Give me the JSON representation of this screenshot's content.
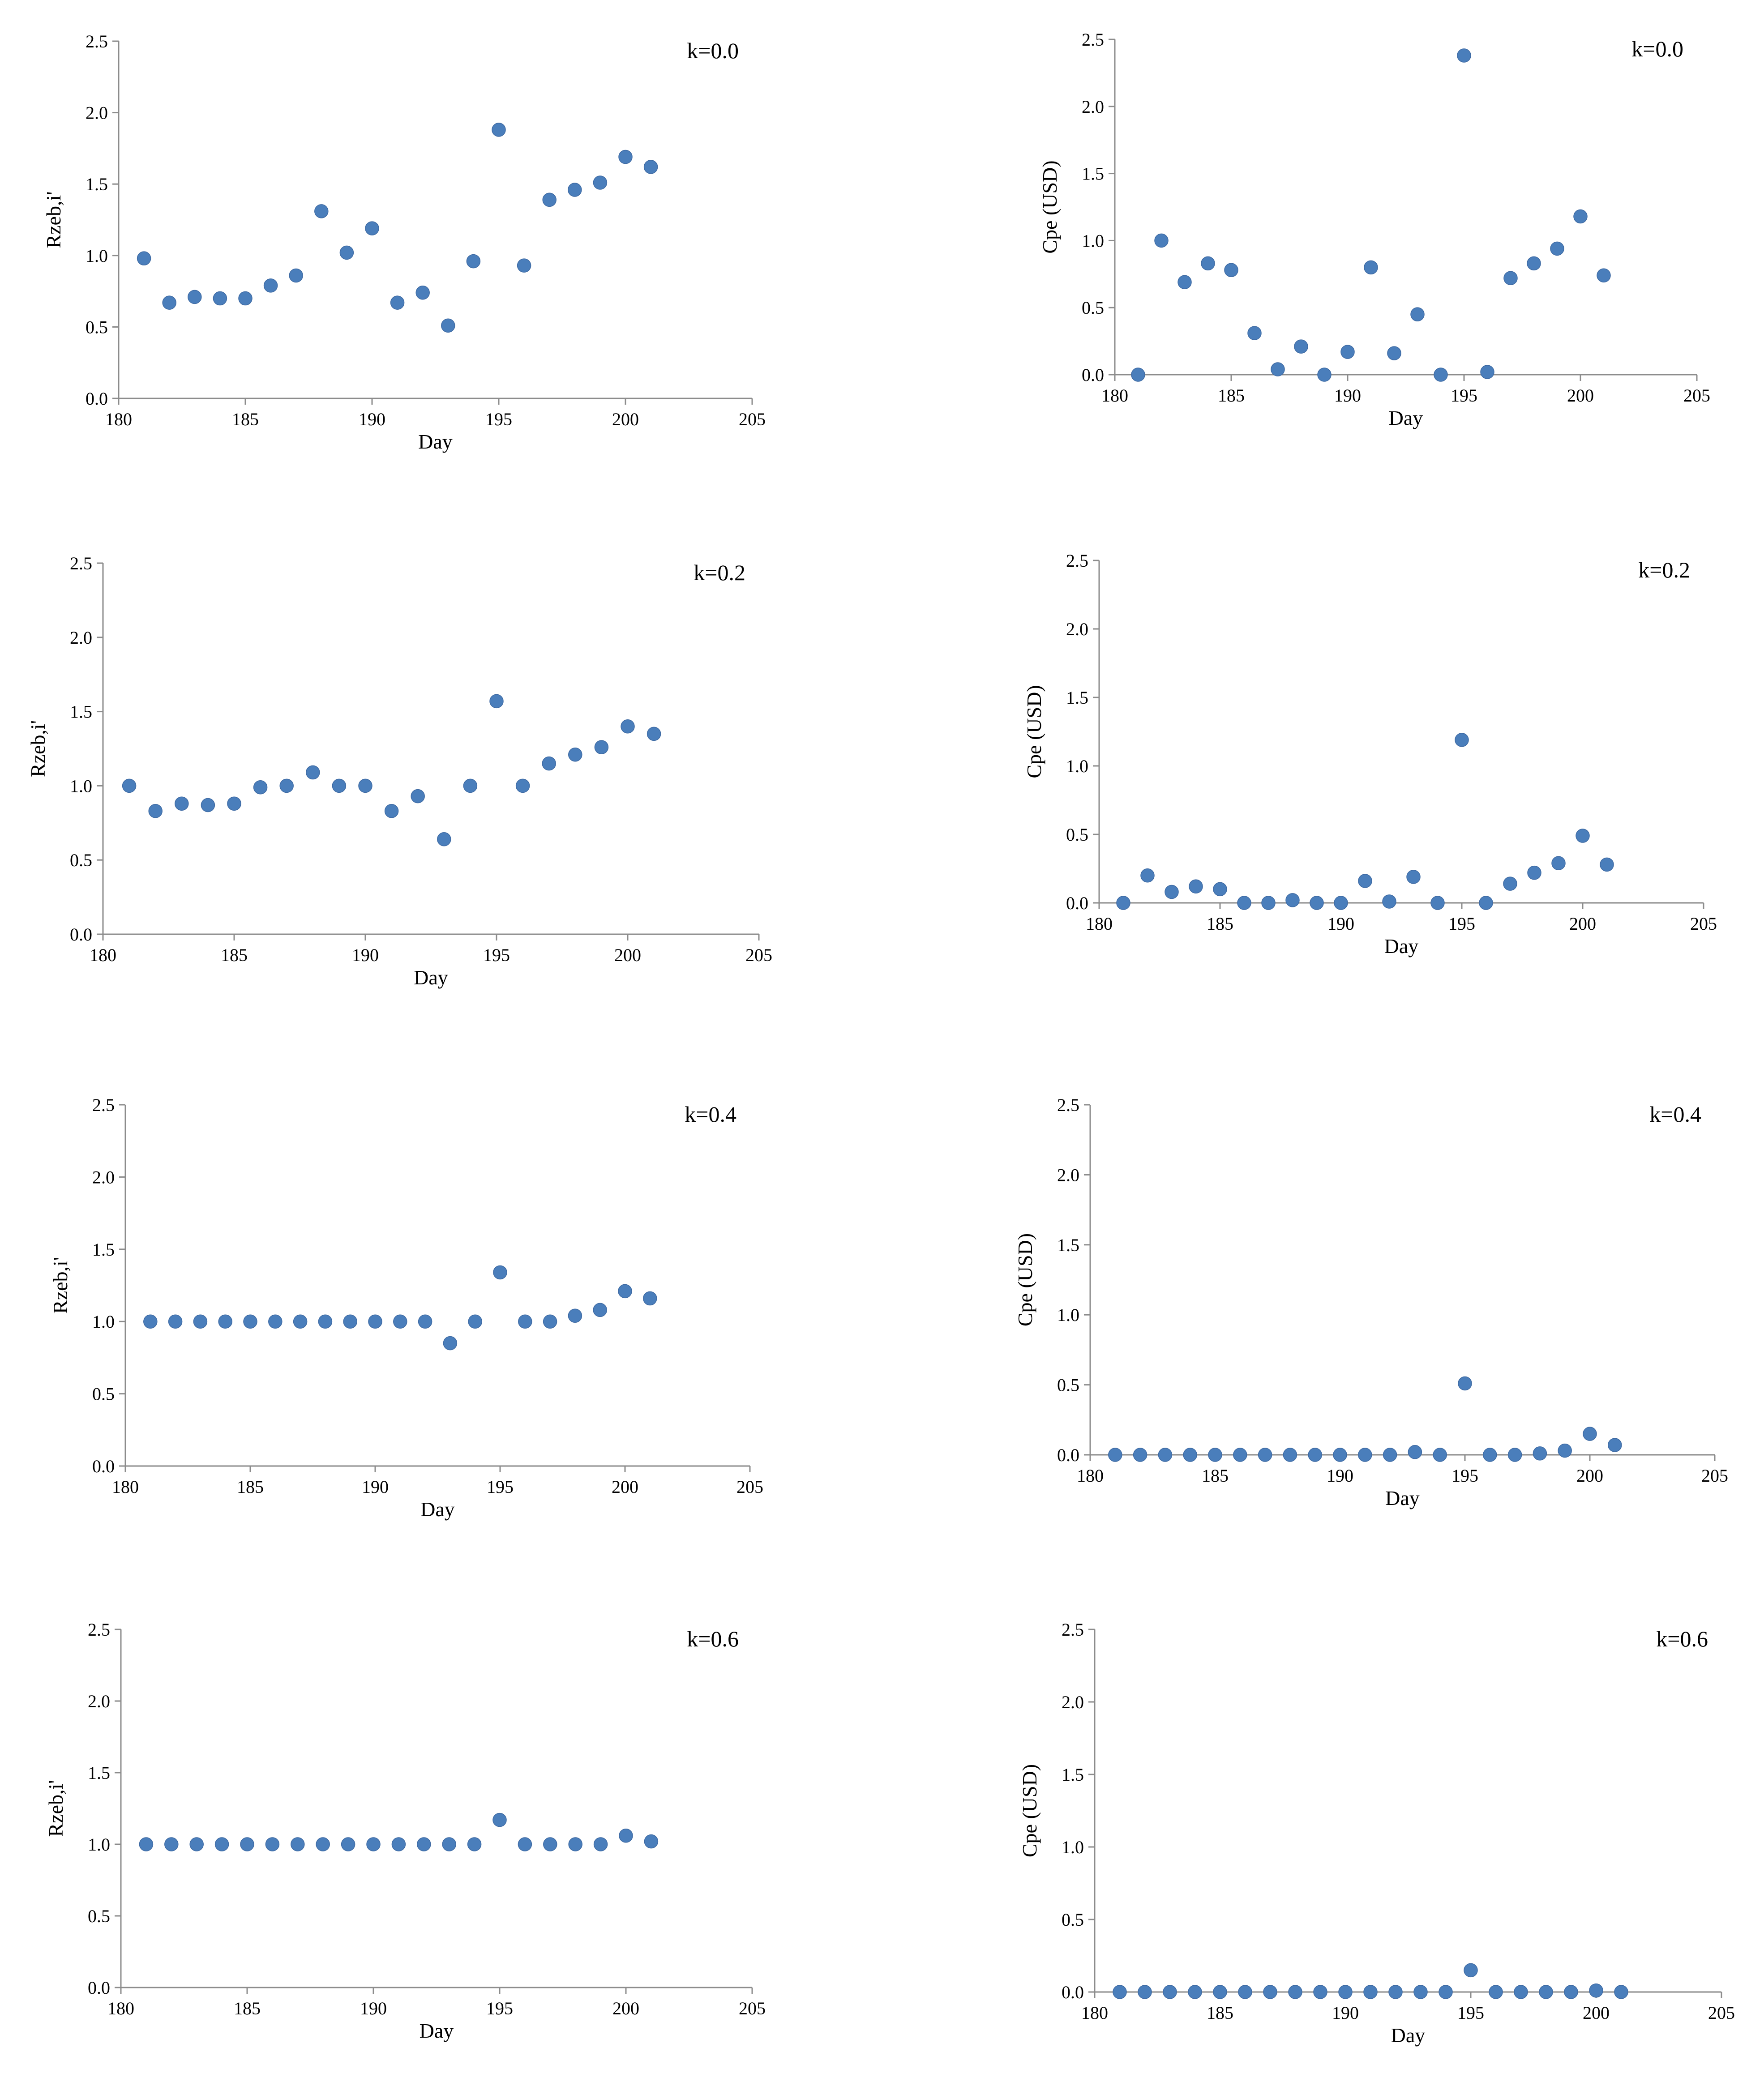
{
  "chart_data": [
    {
      "type": "scatter",
      "title": "k=0.0",
      "xlabel": "Day",
      "ylabel": "Rzeb,i'",
      "xlim": [
        180,
        205
      ],
      "ylim": [
        0.0,
        2.5
      ],
      "xticks": [
        "180",
        "185",
        "190",
        "195",
        "200",
        "205"
      ],
      "yticks": [
        "0.0",
        "0.5",
        "1.0",
        "1.5",
        "2.0",
        "2.5"
      ],
      "grid": false,
      "marker_color": "#4a7ebb",
      "x": [
        181,
        182,
        183,
        184,
        185,
        186,
        187,
        188,
        189,
        190,
        191,
        192,
        193,
        194,
        195,
        196,
        197,
        198,
        199,
        200,
        201
      ],
      "y": [
        0.98,
        0.67,
        0.71,
        0.7,
        0.7,
        0.79,
        0.86,
        1.31,
        1.02,
        1.19,
        0.67,
        0.74,
        0.51,
        0.96,
        1.88,
        0.93,
        1.39,
        1.46,
        1.51,
        1.69,
        1.62
      ]
    },
    {
      "type": "scatter",
      "title": "k=0.0",
      "xlabel": "Day",
      "ylabel": "Cpe (USD)",
      "xlim": [
        180,
        205
      ],
      "ylim": [
        0.0,
        2.5
      ],
      "xticks": [
        "180",
        "185",
        "190",
        "195",
        "200",
        "205"
      ],
      "yticks": [
        "0.0",
        "0.5",
        "1.0",
        "1.5",
        "2.0",
        "2.5"
      ],
      "grid": false,
      "marker_color": "#4a7ebb",
      "x": [
        181,
        182,
        183,
        184,
        185,
        186,
        187,
        188,
        189,
        190,
        191,
        192,
        193,
        194,
        195,
        196,
        197,
        198,
        199,
        200,
        201
      ],
      "y": [
        0.0,
        1.0,
        0.69,
        0.83,
        0.78,
        0.31,
        0.04,
        0.21,
        0.0,
        0.17,
        0.8,
        0.16,
        0.45,
        0.0,
        2.38,
        0.02,
        0.72,
        0.83,
        0.94,
        1.18,
        0.74
      ]
    },
    {
      "type": "scatter",
      "title": "k=0.2",
      "xlabel": "Day",
      "ylabel": "Rzeb,i'",
      "xlim": [
        180,
        205
      ],
      "ylim": [
        0.0,
        2.5
      ],
      "xticks": [
        "180",
        "185",
        "190",
        "195",
        "200",
        "205"
      ],
      "yticks": [
        "0.0",
        "0.5",
        "1.0",
        "1.5",
        "2.0",
        "2.5"
      ],
      "grid": false,
      "marker_color": "#4a7ebb",
      "x": [
        181,
        182,
        183,
        184,
        185,
        186,
        187,
        188,
        189,
        190,
        191,
        192,
        193,
        194,
        195,
        196,
        197,
        198,
        199,
        200,
        201
      ],
      "y": [
        1.0,
        0.83,
        0.88,
        0.87,
        0.88,
        0.99,
        1.0,
        1.09,
        1.0,
        1.0,
        0.83,
        0.93,
        0.64,
        1.0,
        1.57,
        1.0,
        1.15,
        1.21,
        1.26,
        1.4,
        1.35
      ]
    },
    {
      "type": "scatter",
      "title": "k=0.2",
      "xlabel": "Day",
      "ylabel": "Cpe (USD)",
      "xlim": [
        180,
        205
      ],
      "ylim": [
        0.0,
        2.5
      ],
      "xticks": [
        "180",
        "185",
        "190",
        "195",
        "200",
        "205"
      ],
      "yticks": [
        "0.0",
        "0.5",
        "1.0",
        "1.5",
        "2.0",
        "2.5"
      ],
      "grid": false,
      "marker_color": "#4a7ebb",
      "x": [
        181,
        182,
        183,
        184,
        185,
        186,
        187,
        188,
        189,
        190,
        191,
        192,
        193,
        194,
        195,
        196,
        197,
        198,
        199,
        200,
        201
      ],
      "y": [
        0.0,
        0.2,
        0.08,
        0.12,
        0.1,
        0.0,
        0.0,
        0.02,
        0.0,
        0.0,
        0.16,
        0.01,
        0.19,
        0.0,
        1.19,
        0.0,
        0.14,
        0.22,
        0.29,
        0.49,
        0.28
      ]
    },
    {
      "type": "scatter",
      "title": "k=0.4",
      "xlabel": "Day",
      "ylabel": "Rzeb,i'",
      "xlim": [
        180,
        205
      ],
      "ylim": [
        0.0,
        2.5
      ],
      "xticks": [
        "180",
        "185",
        "190",
        "195",
        "200",
        "205"
      ],
      "yticks": [
        "0.0",
        "0.5",
        "1.0",
        "1.5",
        "2.0",
        "2.5"
      ],
      "grid": false,
      "marker_color": "#4a7ebb",
      "x": [
        181,
        182,
        183,
        184,
        185,
        186,
        187,
        188,
        189,
        190,
        191,
        192,
        193,
        194,
        195,
        196,
        197,
        198,
        199,
        200,
        201
      ],
      "y": [
        1.0,
        1.0,
        1.0,
        1.0,
        1.0,
        1.0,
        1.0,
        1.0,
        1.0,
        1.0,
        1.0,
        1.0,
        0.85,
        1.0,
        1.34,
        1.0,
        1.0,
        1.04,
        1.08,
        1.21,
        1.16
      ]
    },
    {
      "type": "scatter",
      "title": "k=0.4",
      "xlabel": "Day",
      "ylabel": "Cpe (USD)",
      "xlim": [
        180,
        205
      ],
      "ylim": [
        0.0,
        2.5
      ],
      "xticks": [
        "180",
        "185",
        "190",
        "195",
        "200",
        "205"
      ],
      "yticks": [
        "0.0",
        "0.5",
        "1.0",
        "1.5",
        "2.0",
        "2.5"
      ],
      "grid": false,
      "marker_color": "#4a7ebb",
      "x": [
        181,
        182,
        183,
        184,
        185,
        186,
        187,
        188,
        189,
        190,
        191,
        192,
        193,
        194,
        195,
        196,
        197,
        198,
        199,
        200,
        201
      ],
      "y": [
        0.0,
        0.0,
        0.0,
        0.0,
        0.0,
        0.0,
        0.0,
        0.0,
        0.0,
        0.0,
        0.0,
        0.0,
        0.02,
        0.0,
        0.51,
        0.0,
        0.0,
        0.01,
        0.03,
        0.15,
        0.07
      ]
    },
    {
      "type": "scatter",
      "title": "k=0.6",
      "xlabel": "Day",
      "ylabel": "Rzeb,i'",
      "xlim": [
        180,
        205
      ],
      "ylim": [
        0.0,
        2.5
      ],
      "xticks": [
        "180",
        "185",
        "190",
        "195",
        "200",
        "205"
      ],
      "yticks": [
        "0.0",
        "0.5",
        "1.0",
        "1.5",
        "2.0",
        "2.5"
      ],
      "grid": false,
      "marker_color": "#4a7ebb",
      "x": [
        181,
        182,
        183,
        184,
        185,
        186,
        187,
        188,
        189,
        190,
        191,
        192,
        193,
        194,
        195,
        196,
        197,
        198,
        199,
        200,
        201
      ],
      "y": [
        1.0,
        1.0,
        1.0,
        1.0,
        1.0,
        1.0,
        1.0,
        1.0,
        1.0,
        1.0,
        1.0,
        1.0,
        1.0,
        1.0,
        1.17,
        1.0,
        1.0,
        1.0,
        1.0,
        1.06,
        1.02
      ]
    },
    {
      "type": "scatter",
      "title": "k=0.6",
      "xlabel": "Day",
      "ylabel": "Cpe (USD)",
      "xlim": [
        180,
        205
      ],
      "ylim": [
        0.0,
        2.5
      ],
      "xticks": [
        "180",
        "185",
        "190",
        "195",
        "200",
        "205"
      ],
      "yticks": [
        "0.0",
        "0.5",
        "1.0",
        "1.5",
        "2.0",
        "2.5"
      ],
      "grid": false,
      "marker_color": "#4a7ebb",
      "x": [
        181,
        182,
        183,
        184,
        185,
        186,
        187,
        188,
        189,
        190,
        191,
        192,
        193,
        194,
        195,
        196,
        197,
        198,
        199,
        200,
        201
      ],
      "y": [
        0.0,
        0.0,
        0.0,
        0.0,
        0.0,
        0.0,
        0.0,
        0.0,
        0.0,
        0.0,
        0.0,
        0.0,
        0.0,
        0.0,
        0.15,
        0.0,
        0.0,
        0.0,
        0.0,
        0.01,
        0.0
      ]
    }
  ]
}
